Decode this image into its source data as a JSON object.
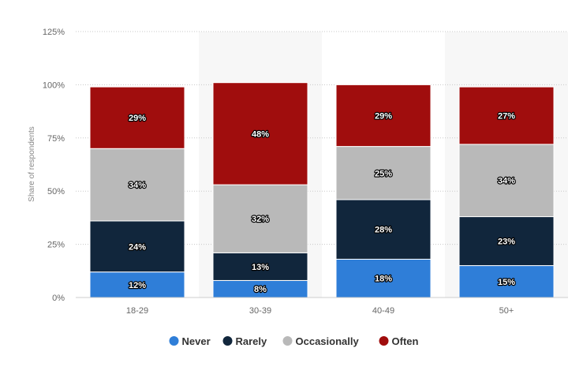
{
  "chart_data": {
    "type": "bar",
    "stacked": true,
    "categories": [
      "18-29",
      "30-39",
      "40-49",
      "50+"
    ],
    "series": [
      {
        "name": "Never",
        "color": "#2f7ed8",
        "values": [
          12,
          8,
          18,
          15
        ],
        "labels": [
          "12%",
          "8%",
          "18%",
          "15%"
        ]
      },
      {
        "name": "Rarely",
        "color": "#11263c",
        "values": [
          24,
          13,
          28,
          23
        ],
        "labels": [
          "24%",
          "13%",
          "28%",
          "23%"
        ]
      },
      {
        "name": "Occasionally",
        "color": "#b9b9b9",
        "values": [
          34,
          32,
          25,
          34
        ],
        "labels": [
          "34%",
          "32%",
          "25%",
          "34%"
        ]
      },
      {
        "name": "Often",
        "color": "#a00d0d",
        "values": [
          29,
          48,
          29,
          27
        ],
        "labels": [
          "29%",
          "48%",
          "29%",
          "27%"
        ]
      }
    ],
    "ylabel": "Share of respondents",
    "ylim": [
      0,
      125
    ],
    "yticks": [
      0,
      25,
      50,
      75,
      100,
      125
    ],
    "ytick_labels": [
      "0%",
      "25%",
      "50%",
      "75%",
      "100%",
      "125%"
    ],
    "grid": true,
    "legend_position": "bottom"
  }
}
